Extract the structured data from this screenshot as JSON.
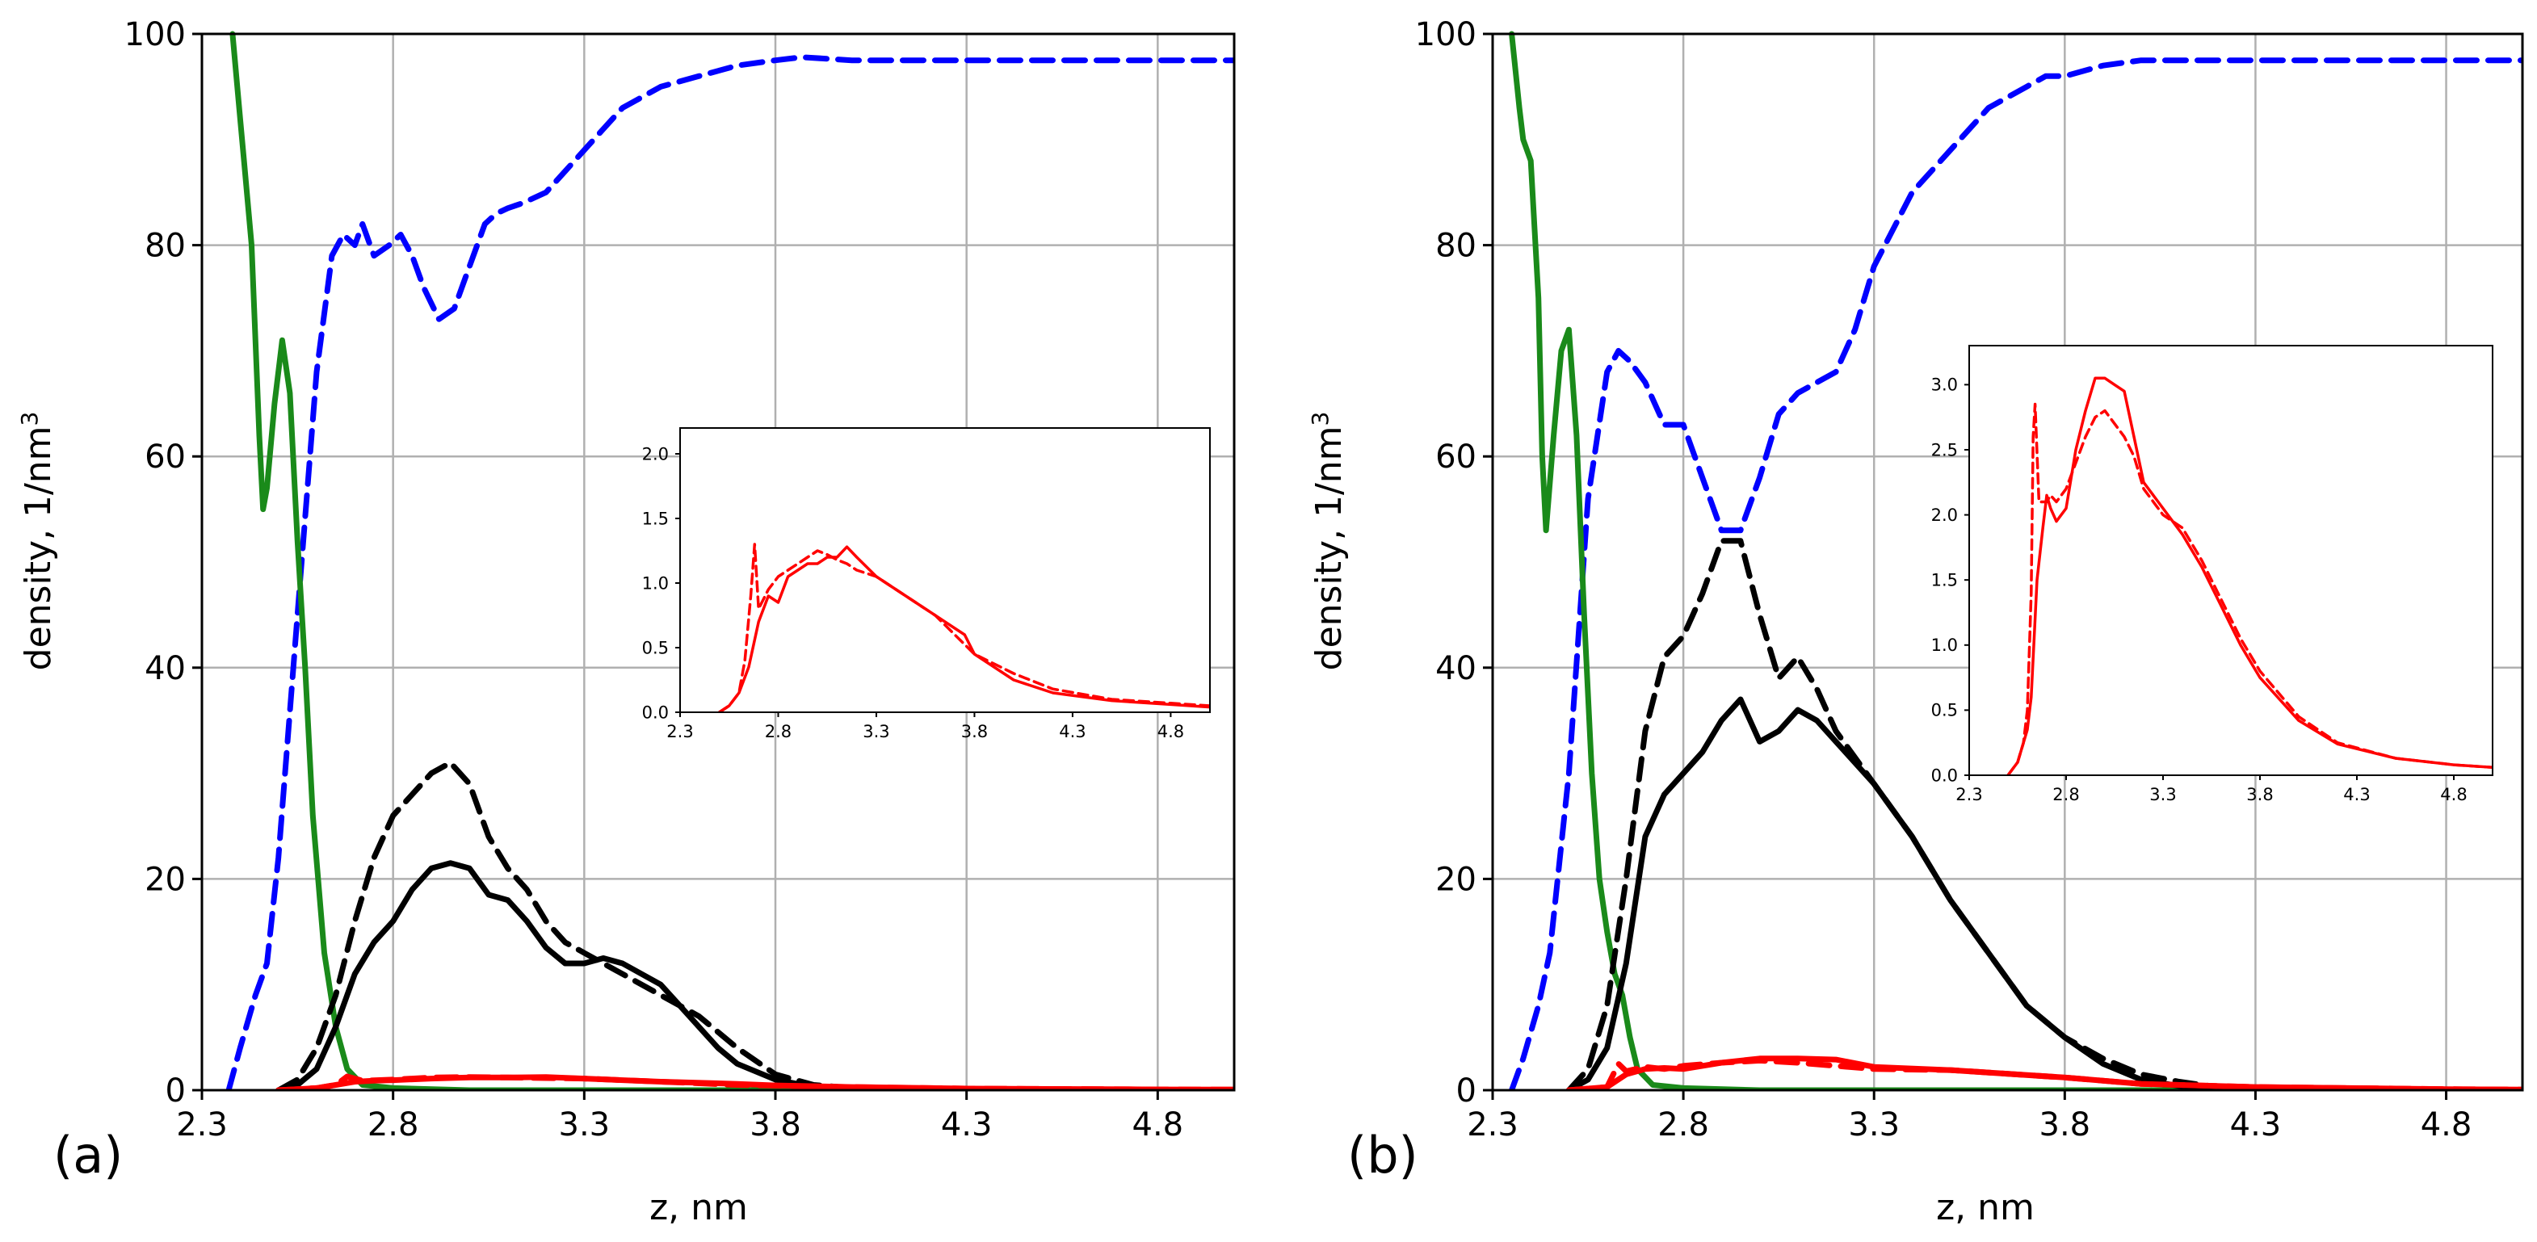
{
  "chart_data": [
    {
      "panel_label": "(a)",
      "type": "line",
      "xlabel": "z, nm",
      "ylabel": "density, 1/nm",
      "ylabel_sup": "3",
      "xlim": [
        2.3,
        5.0
      ],
      "ylim": [
        0,
        100
      ],
      "xticks": [
        "2.3",
        "2.8",
        "3.3",
        "3.8",
        "4.3",
        "4.8"
      ],
      "yticks": [
        "0",
        "20",
        "40",
        "60",
        "80",
        "100"
      ],
      "grid": true,
      "series": [
        {
          "name": "blue dashed",
          "color": "#0000ff",
          "style": "dashed",
          "x": [
            2.37,
            2.4,
            2.44,
            2.47,
            2.5,
            2.55,
            2.6,
            2.64,
            2.67,
            2.7,
            2.72,
            2.75,
            2.79,
            2.82,
            2.85,
            2.88,
            2.92,
            2.96,
            3.0,
            3.04,
            3.07,
            3.1,
            3.14,
            3.2,
            3.25,
            3.3,
            3.35,
            3.4,
            3.5,
            3.6,
            3.7,
            3.8,
            3.87,
            4.0,
            4.2,
            4.5,
            4.8,
            5.0
          ],
          "y": [
            0,
            4,
            9,
            12,
            22,
            45,
            68,
            79,
            81,
            80,
            82,
            79,
            80,
            81,
            79,
            76,
            73,
            74,
            78,
            82,
            83,
            83.5,
            84,
            85,
            87,
            89,
            91,
            93,
            95,
            96,
            97,
            97.5,
            97.8,
            97.5,
            97.5,
            97.5,
            97.5,
            97.5
          ]
        },
        {
          "name": "green solid",
          "color": "#1a8a1a",
          "style": "solid",
          "x": [
            2.38,
            2.4,
            2.41,
            2.43,
            2.45,
            2.46,
            2.47,
            2.49,
            2.51,
            2.53,
            2.55,
            2.57,
            2.59,
            2.62,
            2.65,
            2.68,
            2.72,
            2.8,
            3.0,
            3.5,
            4.0,
            5.0
          ],
          "y": [
            100,
            92,
            88,
            80,
            62,
            55,
            57,
            65,
            71,
            66,
            52,
            40,
            26,
            13,
            6,
            2,
            0.5,
            0.2,
            0,
            0,
            0,
            0
          ]
        },
        {
          "name": "black dashed",
          "color": "#000000",
          "style": "dashed",
          "x": [
            2.5,
            2.55,
            2.6,
            2.65,
            2.7,
            2.75,
            2.8,
            2.85,
            2.9,
            2.95,
            3.0,
            3.05,
            3.1,
            3.15,
            3.2,
            3.25,
            3.3,
            3.4,
            3.5,
            3.6,
            3.7,
            3.8,
            3.9,
            4.0,
            4.2,
            5.0
          ],
          "y": [
            0,
            1,
            4,
            9,
            16,
            22,
            26,
            28,
            30,
            31,
            29,
            24,
            21,
            19,
            16,
            14,
            13,
            11,
            9,
            7,
            4,
            1.5,
            0.5,
            0.2,
            0,
            0
          ]
        },
        {
          "name": "black solid",
          "color": "#000000",
          "style": "solid",
          "x": [
            2.5,
            2.55,
            2.6,
            2.65,
            2.7,
            2.75,
            2.8,
            2.85,
            2.9,
            2.95,
            3.0,
            3.05,
            3.1,
            3.15,
            3.2,
            3.25,
            3.3,
            3.35,
            3.4,
            3.5,
            3.55,
            3.6,
            3.65,
            3.7,
            3.8,
            3.9,
            4.0,
            4.2,
            5.0
          ],
          "y": [
            0,
            0.5,
            2,
            6,
            11,
            14,
            16,
            19,
            21,
            21.5,
            21,
            18.5,
            18,
            16,
            13.5,
            12,
            12,
            12.5,
            12,
            10,
            8,
            6,
            4,
            2.5,
            1,
            0.3,
            0,
            0,
            0
          ]
        },
        {
          "name": "red dashed",
          "color": "#ff0000",
          "style": "dashed",
          "x": [
            2.5,
            2.6,
            2.65,
            2.68,
            2.72,
            2.8,
            2.9,
            3.0,
            3.1,
            3.2,
            3.3,
            3.5,
            3.7,
            4.0,
            4.3,
            4.8,
            5.0
          ],
          "y": [
            0,
            0.2,
            0.5,
            1.3,
            0.9,
            1.0,
            1.2,
            1.25,
            1.2,
            1.15,
            1.1,
            0.8,
            0.5,
            0.3,
            0.15,
            0.07,
            0.05
          ]
        },
        {
          "name": "red solid",
          "color": "#ff0000",
          "style": "solid",
          "x": [
            2.5,
            2.6,
            2.65,
            2.7,
            2.75,
            2.8,
            2.9,
            3.0,
            3.1,
            3.2,
            3.3,
            3.5,
            3.7,
            3.8,
            4.0,
            4.3,
            4.8,
            5.0
          ],
          "y": [
            0,
            0.2,
            0.5,
            0.8,
            0.9,
            0.95,
            1.1,
            1.2,
            1.2,
            1.25,
            1.1,
            0.8,
            0.6,
            0.45,
            0.3,
            0.15,
            0.07,
            0.05
          ]
        }
      ],
      "inset": {
        "xlim": [
          2.3,
          5.0
        ],
        "ylim": [
          0,
          2.2
        ],
        "xticks": [
          "2.3",
          "2.8",
          "3.3",
          "3.8",
          "4.3",
          "4.8"
        ],
        "yticks": [
          "0.0",
          "0.5",
          "1.0",
          "1.5",
          "2.0"
        ],
        "series": [
          {
            "name": "red dashed",
            "color": "#ff0000",
            "style": "dashed",
            "x": [
              2.5,
              2.55,
              2.6,
              2.63,
              2.66,
              2.68,
              2.7,
              2.75,
              2.8,
              2.85,
              2.9,
              2.95,
              3.0,
              3.05,
              3.1,
              3.15,
              3.2,
              3.3,
              3.4,
              3.5,
              3.6,
              3.7,
              3.8,
              4.0,
              4.2,
              4.5,
              4.8,
              5.0
            ],
            "y": [
              0,
              0.05,
              0.15,
              0.4,
              0.9,
              1.3,
              0.8,
              0.95,
              1.05,
              1.1,
              1.15,
              1.2,
              1.25,
              1.22,
              1.18,
              1.15,
              1.1,
              1.05,
              0.95,
              0.85,
              0.75,
              0.6,
              0.45,
              0.3,
              0.18,
              0.1,
              0.07,
              0.05
            ]
          },
          {
            "name": "red solid",
            "color": "#ff0000",
            "style": "solid",
            "x": [
              2.5,
              2.55,
              2.6,
              2.65,
              2.7,
              2.75,
              2.8,
              2.85,
              2.9,
              2.95,
              3.0,
              3.05,
              3.1,
              3.15,
              3.2,
              3.3,
              3.4,
              3.5,
              3.6,
              3.7,
              3.75,
              3.8,
              3.9,
              4.0,
              4.2,
              4.5,
              4.8,
              5.0
            ],
            "y": [
              0,
              0.05,
              0.15,
              0.35,
              0.7,
              0.9,
              0.85,
              1.05,
              1.1,
              1.15,
              1.15,
              1.2,
              1.2,
              1.28,
              1.2,
              1.05,
              0.95,
              0.85,
              0.75,
              0.65,
              0.6,
              0.45,
              0.35,
              0.25,
              0.15,
              0.09,
              0.06,
              0.04
            ]
          }
        ]
      }
    },
    {
      "panel_label": "(b)",
      "type": "line",
      "xlabel": "z, nm",
      "ylabel": "density, 1/nm",
      "ylabel_sup": "3",
      "xlim": [
        2.3,
        5.0
      ],
      "ylim": [
        0,
        100
      ],
      "xticks": [
        "2.3",
        "2.8",
        "3.3",
        "3.8",
        "4.3",
        "4.8"
      ],
      "yticks": [
        "0",
        "20",
        "40",
        "60",
        "80",
        "100"
      ],
      "grid": true,
      "series": [
        {
          "name": "blue dashed",
          "color": "#0000ff",
          "style": "dashed",
          "x": [
            2.35,
            2.38,
            2.42,
            2.45,
            2.5,
            2.55,
            2.6,
            2.63,
            2.66,
            2.7,
            2.75,
            2.8,
            2.85,
            2.9,
            2.95,
            3.0,
            3.05,
            3.1,
            3.15,
            3.2,
            3.25,
            3.3,
            3.4,
            3.5,
            3.6,
            3.7,
            3.75,
            3.8,
            3.9,
            4.0,
            4.2,
            4.5,
            4.8,
            5.0
          ],
          "y": [
            0,
            3,
            8,
            13,
            30,
            56,
            68,
            70,
            69,
            67,
            63,
            63,
            58,
            53,
            53,
            58,
            64,
            66,
            67,
            68,
            72,
            78,
            85,
            89,
            93,
            95,
            96,
            96,
            97,
            97.5,
            97.5,
            97.5,
            97.5,
            97.5
          ]
        },
        {
          "name": "green solid",
          "color": "#1a8a1a",
          "style": "solid",
          "x": [
            2.35,
            2.37,
            2.38,
            2.4,
            2.42,
            2.43,
            2.44,
            2.46,
            2.48,
            2.5,
            2.52,
            2.54,
            2.56,
            2.58,
            2.6,
            2.62,
            2.64,
            2.66,
            2.68,
            2.72,
            2.8,
            3.0,
            3.5,
            4.0,
            5.0
          ],
          "y": [
            100,
            93,
            90,
            88,
            75,
            60,
            53,
            62,
            70,
            72,
            62,
            45,
            30,
            20,
            15,
            11,
            9,
            5,
            2,
            0.5,
            0.2,
            0,
            0,
            0,
            0
          ]
        },
        {
          "name": "black dashed",
          "color": "#000000",
          "style": "dashed",
          "x": [
            2.5,
            2.55,
            2.6,
            2.65,
            2.7,
            2.75,
            2.8,
            2.85,
            2.9,
            2.95,
            3.0,
            3.05,
            3.1,
            3.15,
            3.2,
            3.3,
            3.4,
            3.5,
            3.6,
            3.7,
            3.8,
            3.9,
            4.0,
            4.1,
            4.2,
            4.3,
            5.0
          ],
          "y": [
            0,
            2,
            8,
            20,
            34,
            41,
            43,
            47,
            52,
            52,
            45,
            39,
            41,
            38,
            34,
            29,
            24,
            18,
            13,
            8,
            5,
            3,
            1.5,
            0.8,
            0.3,
            0,
            0
          ]
        },
        {
          "name": "black solid",
          "color": "#000000",
          "style": "solid",
          "x": [
            2.5,
            2.55,
            2.6,
            2.65,
            2.7,
            2.75,
            2.8,
            2.85,
            2.9,
            2.95,
            3.0,
            3.05,
            3.1,
            3.15,
            3.2,
            3.3,
            3.4,
            3.5,
            3.6,
            3.7,
            3.8,
            3.9,
            4.0,
            4.1,
            4.2,
            4.3,
            5.0
          ],
          "y": [
            0,
            1,
            4,
            12,
            24,
            28,
            30,
            32,
            35,
            37,
            33,
            34,
            36,
            35,
            33,
            29,
            24,
            18,
            13,
            8,
            5,
            2.5,
            1,
            0.4,
            0.1,
            0,
            0
          ]
        },
        {
          "name": "red dashed",
          "color": "#ff0000",
          "style": "dashed",
          "x": [
            2.5,
            2.6,
            2.63,
            2.65,
            2.7,
            2.75,
            2.8,
            2.9,
            3.0,
            3.1,
            3.2,
            3.3,
            3.5,
            3.8,
            4.0,
            4.3,
            4.8,
            5.0
          ],
          "y": [
            0,
            0.3,
            2.5,
            1.8,
            2.2,
            2.0,
            2.3,
            2.6,
            2.8,
            2.6,
            2.3,
            2.0,
            1.9,
            1.2,
            0.6,
            0.3,
            0.1,
            0.05
          ]
        },
        {
          "name": "red solid",
          "color": "#ff0000",
          "style": "solid",
          "x": [
            2.5,
            2.6,
            2.65,
            2.7,
            2.75,
            2.8,
            2.9,
            3.0,
            3.1,
            3.2,
            3.3,
            3.5,
            3.8,
            4.0,
            4.3,
            4.8,
            5.0
          ],
          "y": [
            0,
            0.3,
            1.5,
            2.0,
            2.1,
            2.0,
            2.6,
            3.0,
            3.0,
            2.9,
            2.2,
            1.9,
            1.2,
            0.6,
            0.3,
            0.1,
            0.05
          ]
        }
      ],
      "inset": {
        "xlim": [
          2.3,
          5.0
        ],
        "ylim": [
          0,
          3.3
        ],
        "xticks": [
          "2.3",
          "2.8",
          "3.3",
          "3.8",
          "4.3",
          "4.8"
        ],
        "yticks": [
          "0.0",
          "0.5",
          "1.0",
          "1.5",
          "2.0",
          "2.5",
          "3.0"
        ],
        "series": [
          {
            "name": "red dashed",
            "color": "#ff0000",
            "style": "dashed",
            "x": [
              2.5,
              2.55,
              2.58,
              2.6,
              2.62,
              2.63,
              2.64,
              2.66,
              2.7,
              2.72,
              2.75,
              2.8,
              2.85,
              2.9,
              2.95,
              3.0,
              3.05,
              3.1,
              3.15,
              3.2,
              3.3,
              3.4,
              3.5,
              3.6,
              3.7,
              3.8,
              4.0,
              4.2,
              4.5,
              4.8,
              5.0
            ],
            "y": [
              0,
              0.1,
              0.25,
              0.5,
              1.4,
              2.6,
              2.85,
              2.1,
              2.1,
              2.15,
              2.1,
              2.2,
              2.4,
              2.6,
              2.75,
              2.8,
              2.7,
              2.6,
              2.45,
              2.2,
              2.0,
              1.9,
              1.65,
              1.35,
              1.05,
              0.8,
              0.45,
              0.25,
              0.13,
              0.08,
              0.06
            ]
          },
          {
            "name": "red solid",
            "color": "#ff0000",
            "style": "solid",
            "x": [
              2.5,
              2.55,
              2.58,
              2.6,
              2.62,
              2.65,
              2.68,
              2.7,
              2.72,
              2.75,
              2.8,
              2.85,
              2.9,
              2.95,
              3.0,
              3.05,
              3.1,
              3.15,
              3.2,
              3.3,
              3.4,
              3.5,
              3.6,
              3.7,
              3.8,
              4.0,
              4.2,
              4.5,
              4.8,
              5.0
            ],
            "y": [
              0,
              0.1,
              0.25,
              0.35,
              0.6,
              1.5,
              1.9,
              2.15,
              2.05,
              1.95,
              2.05,
              2.5,
              2.8,
              3.05,
              3.05,
              3.0,
              2.95,
              2.6,
              2.25,
              2.05,
              1.85,
              1.6,
              1.3,
              1.0,
              0.75,
              0.42,
              0.24,
              0.13,
              0.08,
              0.06
            ]
          }
        ]
      }
    }
  ]
}
